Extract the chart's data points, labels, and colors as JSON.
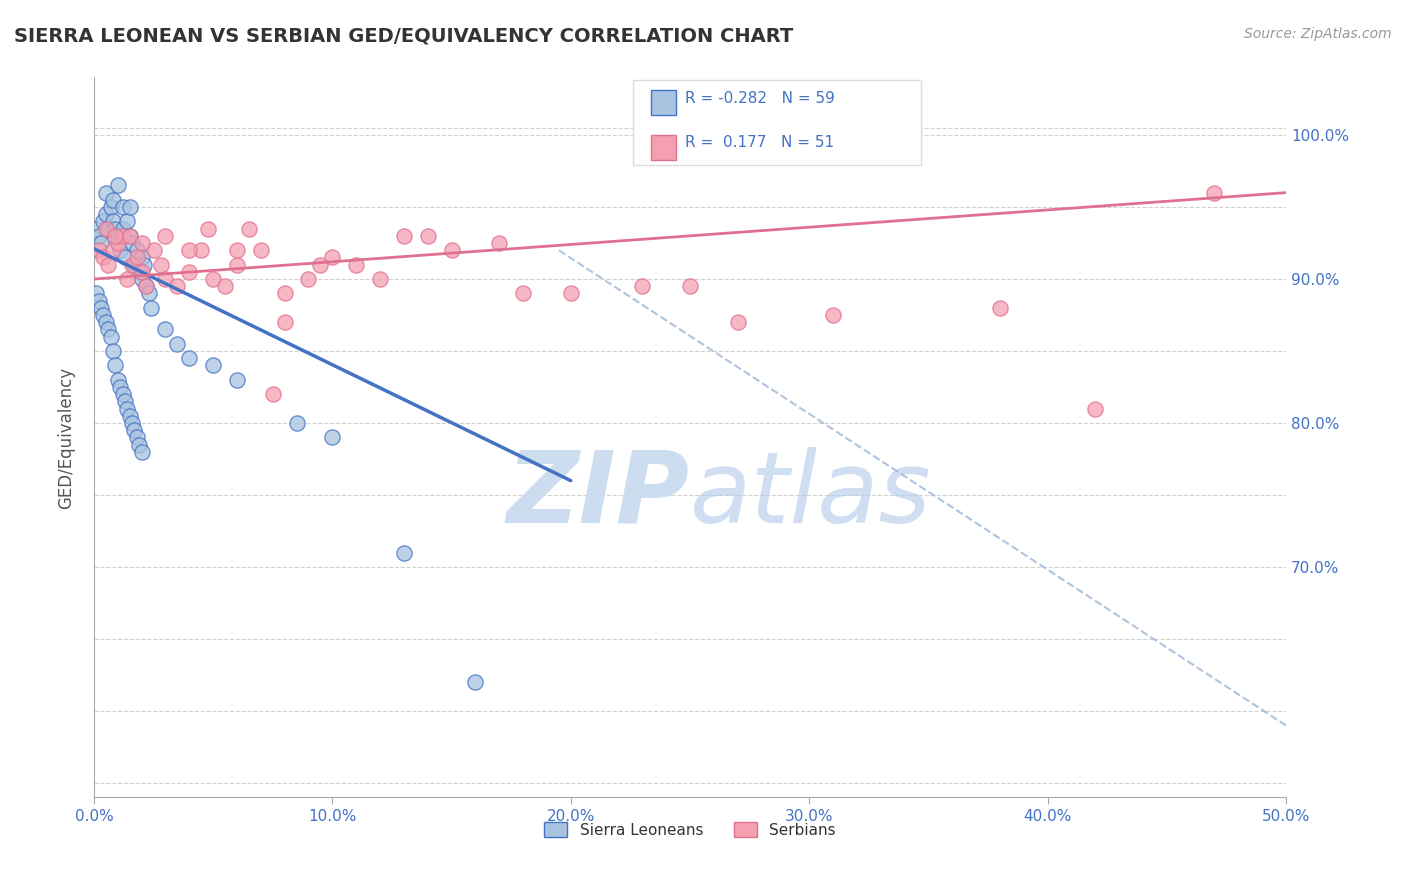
{
  "title": "SIERRA LEONEAN VS SERBIAN GED/EQUIVALENCY CORRELATION CHART",
  "source_text": "Source: ZipAtlas.com",
  "ylabel": "GED/Equivalency",
  "xlim": [
    0.0,
    0.5
  ],
  "ylim": [
    0.54,
    1.04
  ],
  "yticks": [
    0.7,
    0.8,
    0.9,
    1.0
  ],
  "ytick_labels": [
    "70.0%",
    "80.0%",
    "90.0%",
    "100.0%"
  ],
  "xticks": [
    0.0,
    0.1,
    0.2,
    0.3,
    0.4,
    0.5
  ],
  "xtick_labels": [
    "0.0%",
    "10.0%",
    "20.0%",
    "30.0%",
    "40.0%",
    "50.0%"
  ],
  "blue_R": -0.282,
  "blue_N": 59,
  "pink_R": 0.177,
  "pink_N": 51,
  "blue_color": "#a8c4e0",
  "pink_color": "#f4a0b0",
  "blue_line_color": "#4472c4",
  "pink_line_color": "#e07090",
  "dashed_line_color": "#9ab5d5",
  "axis_color": "#4472c4",
  "background_color": "#ffffff",
  "watermark_color": "#ccddef",
  "legend_label_blue": "Sierra Leoneans",
  "legend_label_pink": "Serbians",
  "blue_scatter_x": [
    0.001,
    0.002,
    0.003,
    0.004,
    0.005,
    0.005,
    0.006,
    0.007,
    0.008,
    0.008,
    0.009,
    0.01,
    0.01,
    0.011,
    0.012,
    0.012,
    0.013,
    0.014,
    0.015,
    0.015,
    0.016,
    0.017,
    0.018,
    0.019,
    0.02,
    0.02,
    0.021,
    0.022,
    0.023,
    0.024,
    0.001,
    0.002,
    0.003,
    0.004,
    0.005,
    0.006,
    0.007,
    0.008,
    0.009,
    0.01,
    0.011,
    0.012,
    0.013,
    0.014,
    0.015,
    0.016,
    0.017,
    0.018,
    0.019,
    0.02,
    0.05,
    0.06,
    0.085,
    0.1,
    0.03,
    0.035,
    0.04,
    0.13,
    0.16
  ],
  "blue_scatter_y": [
    0.935,
    0.93,
    0.925,
    0.94,
    0.945,
    0.96,
    0.935,
    0.95,
    0.955,
    0.94,
    0.935,
    0.93,
    0.965,
    0.92,
    0.935,
    0.95,
    0.915,
    0.94,
    0.93,
    0.95,
    0.925,
    0.91,
    0.92,
    0.905,
    0.915,
    0.9,
    0.91,
    0.895,
    0.89,
    0.88,
    0.89,
    0.885,
    0.88,
    0.875,
    0.87,
    0.865,
    0.86,
    0.85,
    0.84,
    0.83,
    0.825,
    0.82,
    0.815,
    0.81,
    0.805,
    0.8,
    0.795,
    0.79,
    0.785,
    0.78,
    0.84,
    0.83,
    0.8,
    0.79,
    0.865,
    0.855,
    0.845,
    0.71,
    0.62
  ],
  "pink_scatter_x": [
    0.002,
    0.004,
    0.006,
    0.008,
    0.01,
    0.012,
    0.014,
    0.016,
    0.018,
    0.02,
    0.022,
    0.025,
    0.028,
    0.03,
    0.035,
    0.04,
    0.045,
    0.05,
    0.055,
    0.06,
    0.07,
    0.08,
    0.09,
    0.1,
    0.11,
    0.13,
    0.15,
    0.17,
    0.2,
    0.23,
    0.27,
    0.31,
    0.38,
    0.42,
    0.47,
    0.005,
    0.009,
    0.015,
    0.02,
    0.03,
    0.04,
    0.06,
    0.08,
    0.12,
    0.18,
    0.25,
    0.14,
    0.095,
    0.065,
    0.048,
    0.075
  ],
  "pink_scatter_y": [
    0.92,
    0.915,
    0.91,
    0.92,
    0.925,
    0.93,
    0.9,
    0.91,
    0.915,
    0.905,
    0.895,
    0.92,
    0.91,
    0.9,
    0.895,
    0.905,
    0.92,
    0.9,
    0.895,
    0.91,
    0.92,
    0.89,
    0.9,
    0.915,
    0.91,
    0.93,
    0.92,
    0.925,
    0.89,
    0.895,
    0.87,
    0.875,
    0.88,
    0.81,
    0.96,
    0.935,
    0.93,
    0.93,
    0.925,
    0.93,
    0.92,
    0.92,
    0.87,
    0.9,
    0.89,
    0.895,
    0.93,
    0.91,
    0.935,
    0.935,
    0.82
  ],
  "blue_trendline_x": [
    0.0,
    0.2
  ],
  "blue_trendline_y": [
    0.921,
    0.76
  ],
  "pink_trendline_x": [
    0.0,
    0.5
  ],
  "pink_trendline_y": [
    0.9,
    0.96
  ],
  "dashed_line_x": [
    0.195,
    0.5
  ],
  "dashed_line_y": [
    0.92,
    0.59
  ]
}
